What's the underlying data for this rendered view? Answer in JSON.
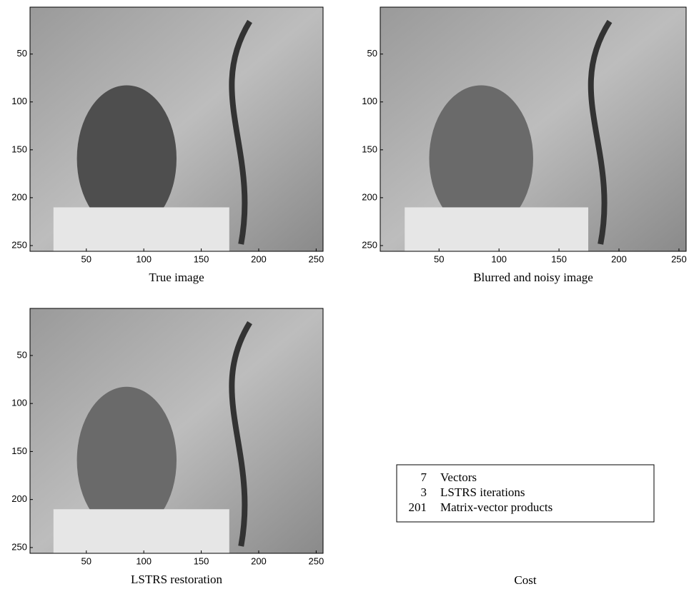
{
  "chart_data": [
    {
      "type": "image",
      "caption": "True image",
      "xlim": [
        1,
        256
      ],
      "ylim": [
        1,
        256
      ],
      "xticks": [
        50,
        100,
        150,
        200,
        250
      ],
      "yticks": [
        50,
        100,
        150,
        200,
        250
      ]
    },
    {
      "type": "image",
      "caption": "Blurred and noisy image",
      "xlim": [
        1,
        256
      ],
      "ylim": [
        1,
        256
      ],
      "xticks": [
        50,
        100,
        150,
        200,
        250
      ],
      "yticks": [
        50,
        100,
        150,
        200,
        250
      ]
    },
    {
      "type": "image",
      "caption": "LSTRS restoration",
      "xlim": [
        1,
        256
      ],
      "ylim": [
        1,
        256
      ],
      "xticks": [
        50,
        100,
        150,
        200,
        250
      ],
      "yticks": [
        50,
        100,
        150,
        200,
        250
      ]
    }
  ],
  "cost_table": {
    "rows": [
      [
        7,
        "Vectors"
      ],
      [
        3,
        "LSTRS iterations"
      ],
      [
        201,
        "Matrix-vector products"
      ]
    ],
    "caption": "Cost"
  }
}
